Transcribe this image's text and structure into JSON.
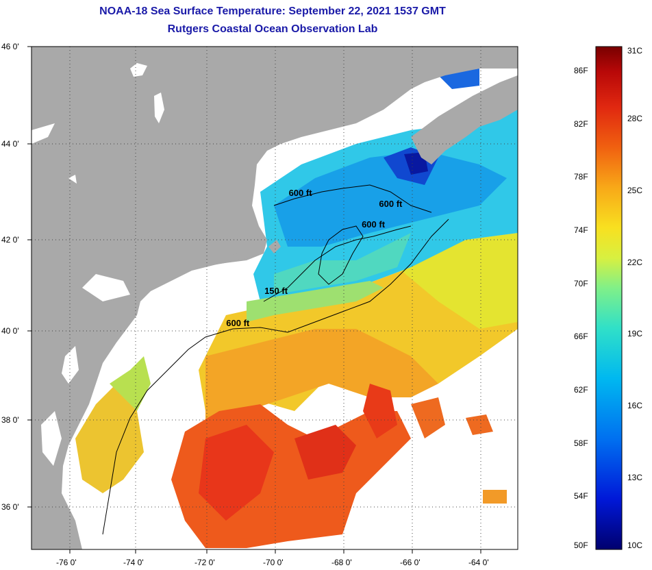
{
  "title": {
    "line1": "NOAA-18 Sea Surface Temperature:  September 22, 2021 1537 GMT",
    "line2": "Rutgers Coastal Ocean Observation Lab"
  },
  "map": {
    "lat_labels": [
      "46 0'",
      "44 0'",
      "42 0'",
      "40 0'",
      "38 0'",
      "36 0'"
    ],
    "lon_labels": [
      "-76 0'",
      "-74 0'",
      "-72 0'",
      "-70 0'",
      "-68 0'",
      "-66 0'",
      "-64 0'"
    ],
    "lat_range": [
      35,
      46
    ],
    "lon_range": [
      -77,
      -63
    ],
    "contour_labels": [
      {
        "text": "600 ft",
        "lon": -69.2,
        "lat": 42.8
      },
      {
        "text": "600 ft",
        "lon": -66.6,
        "lat": 42.55
      },
      {
        "text": "600 ft",
        "lon": -67.1,
        "lat": 42.1
      },
      {
        "text": "150 ft",
        "lon": -69.9,
        "lat": 40.65
      },
      {
        "text": "600 ft",
        "lon": -71.0,
        "lat": 39.95
      }
    ]
  },
  "colorbar": {
    "fahrenheit_labels": [
      "86F",
      "82F",
      "78F",
      "74F",
      "70F",
      "66F",
      "62F",
      "58F",
      "54F",
      "50F"
    ],
    "celsius_labels": [
      "31C",
      "28C",
      "25C",
      "22C",
      "19C",
      "16C",
      "13C",
      "10C"
    ],
    "fahrenheit_values": [
      86,
      82,
      78,
      74,
      70,
      66,
      62,
      58,
      54,
      50
    ],
    "celsius_values": [
      31,
      28,
      25,
      22,
      19,
      16,
      13,
      10
    ],
    "range_c": [
      10,
      31
    ]
  },
  "colors": {
    "title": "#1a1aa8",
    "land": "#a9a9a9",
    "no_data": "#ffffff"
  }
}
